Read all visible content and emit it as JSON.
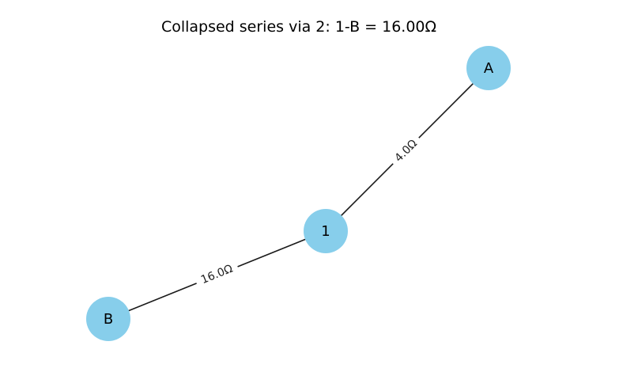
{
  "title": "Collapsed series via 2: 1-B = 16.00Ω",
  "colors": {
    "node_fill": "#87ceeb",
    "edge": "#1a1a1a",
    "background": "#ffffff"
  },
  "nodes": [
    {
      "id": "A",
      "label": "A"
    },
    {
      "id": "1",
      "label": "1"
    },
    {
      "id": "B",
      "label": "B"
    }
  ],
  "edges": [
    {
      "from": "1",
      "to": "A",
      "label": "4.0Ω"
    },
    {
      "from": "1",
      "to": "B",
      "label": "16.0Ω"
    }
  ]
}
